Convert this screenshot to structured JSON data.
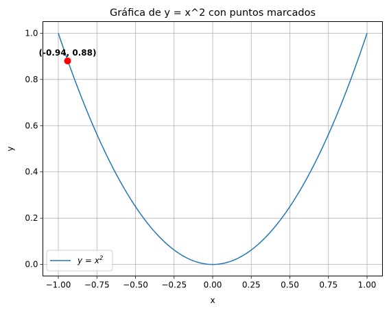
{
  "chart_data": {
    "type": "line",
    "title": "Gráfica de y = x^2 con puntos marcados",
    "xlabel": "x",
    "ylabel": "y",
    "xlim": [
      -1.1,
      1.1
    ],
    "ylim": [
      -0.05,
      1.05
    ],
    "grid": true,
    "legend_position": "lower-left",
    "x_ticks": [
      -1.0,
      -0.75,
      -0.5,
      -0.25,
      0.0,
      0.25,
      0.5,
      0.75,
      1.0
    ],
    "x_tick_labels": [
      "−1.00",
      "−0.75",
      "−0.50",
      "−0.25",
      "0.00",
      "0.25",
      "0.50",
      "0.75",
      "1.00"
    ],
    "y_ticks": [
      0.0,
      0.2,
      0.4,
      0.6,
      0.8,
      1.0
    ],
    "y_tick_labels": [
      "0.0",
      "0.2",
      "0.4",
      "0.6",
      "0.8",
      "1.0"
    ],
    "series": [
      {
        "name": "y = x²",
        "legend_base": "y = x",
        "legend_exponent": "2",
        "function": "x^2",
        "x_range": [
          -1.0,
          1.0
        ],
        "color": "#1f77b4"
      }
    ],
    "points": [
      {
        "x": -0.94,
        "y": 0.88,
        "label": "(-0.94, 0.88)",
        "color": "#ff0000"
      }
    ]
  }
}
